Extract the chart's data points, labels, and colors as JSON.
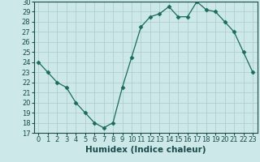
{
  "x": [
    0,
    1,
    2,
    3,
    4,
    5,
    6,
    7,
    8,
    9,
    10,
    11,
    12,
    13,
    14,
    15,
    16,
    17,
    18,
    19,
    20,
    21,
    22,
    23
  ],
  "y": [
    24,
    23,
    22,
    21.5,
    20,
    19,
    18,
    17.5,
    18,
    21.5,
    24.5,
    27.5,
    28.5,
    28.8,
    29.5,
    28.5,
    28.5,
    30,
    29.2,
    29,
    28,
    27,
    25,
    23
  ],
  "xlabel": "Humidex (Indice chaleur)",
  "xlim": [
    -0.5,
    23.5
  ],
  "ylim": [
    17,
    30
  ],
  "yticks": [
    17,
    18,
    19,
    20,
    21,
    22,
    23,
    24,
    25,
    26,
    27,
    28,
    29,
    30
  ],
  "xticks": [
    0,
    1,
    2,
    3,
    4,
    5,
    6,
    7,
    8,
    9,
    10,
    11,
    12,
    13,
    14,
    15,
    16,
    17,
    18,
    19,
    20,
    21,
    22,
    23
  ],
  "line_color": "#1a6b5a",
  "marker": "D",
  "marker_size": 2.5,
  "bg_color": "#cce8e8",
  "grid_color": "#aacccc",
  "text_color": "#1a4a4a",
  "xlabel_fontsize": 7.5,
  "tick_fontsize": 6
}
